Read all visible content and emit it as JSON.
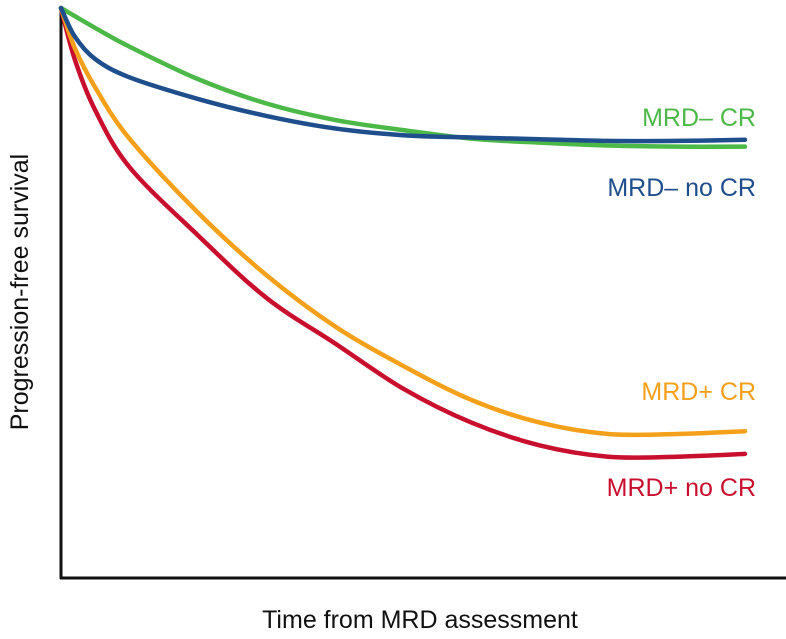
{
  "chart_data": {
    "type": "line",
    "title": "",
    "xlabel": "Time from MRD assessment",
    "ylabel": "Progression-free survival",
    "xlim": [
      0,
      100
    ],
    "ylim": [
      0,
      100
    ],
    "grid": false,
    "x_ticks": [],
    "y_ticks": [],
    "legend": "direct labels at right end of each line",
    "series": [
      {
        "name": "MRD– CR",
        "color": "#4CB848",
        "x": [
          0,
          5,
          10,
          20,
          30,
          40,
          50,
          60,
          70,
          80,
          90,
          100
        ],
        "y": [
          100,
          96.5,
          93.2,
          87.5,
          83.2,
          80.3,
          78.5,
          77.0,
          76.3,
          75.8,
          75.6,
          75.6
        ]
      },
      {
        "name": "MRD– no CR",
        "color": "#1F4E8C",
        "x": [
          0,
          2,
          5,
          10,
          20,
          30,
          40,
          50,
          60,
          70,
          80,
          90,
          100
        ],
        "y": [
          100,
          95,
          91,
          87.8,
          84,
          81,
          78.8,
          77.6,
          77.2,
          76.9,
          76.6,
          76.6,
          76.8
        ]
      },
      {
        "name": "MRD+ CR",
        "color": "#F5A01A",
        "x": [
          0,
          2,
          5,
          10,
          20,
          30,
          40,
          50,
          60,
          70,
          80,
          90,
          100
        ],
        "y": [
          100,
          93,
          86,
          77,
          64,
          53,
          44,
          37,
          31,
          27,
          25,
          25,
          25.5
        ]
      },
      {
        "name": "MRD+ no CR",
        "color": "#C8102E",
        "x": [
          0,
          2,
          5,
          10,
          20,
          30,
          40,
          50,
          60,
          70,
          80,
          90,
          100
        ],
        "y": [
          100,
          91,
          82,
          72,
          60,
          49,
          41,
          33,
          27,
          23,
          21,
          21,
          21.5
        ]
      }
    ]
  }
}
